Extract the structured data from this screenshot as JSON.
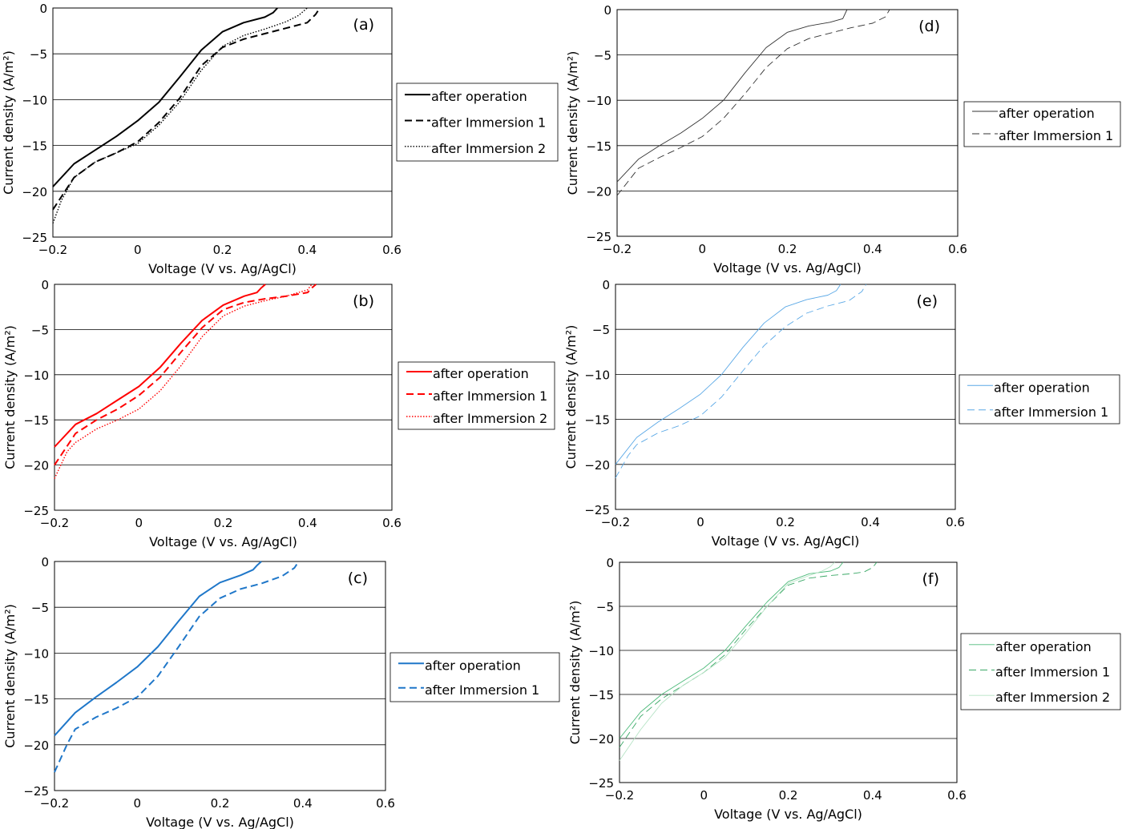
{
  "chart_data": [
    {
      "type": "line",
      "panel_label": "(a)",
      "xlabel": "Voltage (V vs. Ag/AgCl)",
      "ylabel": "Current density (A/m²)",
      "xlim": [
        -0.2,
        0.6
      ],
      "ylim": [
        -25,
        0
      ],
      "xticks": [
        "−0.2",
        "0",
        "0.2",
        "0.4",
        "0.6"
      ],
      "yticks": [
        "0",
        "−5",
        "−10",
        "−15",
        "−20",
        "−25"
      ],
      "grid": "horizontal",
      "legend_position": "right",
      "series": [
        {
          "name": "after operation",
          "color": "#000000",
          "style": "solid",
          "width": 2,
          "x": [
            -0.2,
            -0.15,
            -0.1,
            -0.05,
            0.0,
            0.05,
            0.1,
            0.15,
            0.2,
            0.25,
            0.3,
            0.32,
            0.33
          ],
          "y": [
            -19.5,
            -17.0,
            -15.5,
            -14.0,
            -12.3,
            -10.3,
            -7.5,
            -4.6,
            -2.6,
            -1.6,
            -1.0,
            -0.5,
            0
          ]
        },
        {
          "name": "after Immersion 1",
          "color": "#000000",
          "style": "dashed",
          "width": 2,
          "x": [
            -0.2,
            -0.15,
            -0.1,
            -0.05,
            0.0,
            0.05,
            0.1,
            0.15,
            0.2,
            0.25,
            0.3,
            0.35,
            0.4,
            0.42,
            0.43
          ],
          "y": [
            -22.0,
            -18.5,
            -16.8,
            -15.8,
            -14.6,
            -12.5,
            -9.8,
            -6.3,
            -4.3,
            -3.4,
            -2.8,
            -2.2,
            -1.6,
            -0.7,
            0
          ]
        },
        {
          "name": "after Immersion 2",
          "color": "#000000",
          "style": "dotted",
          "width": 1.4,
          "x": [
            -0.2,
            -0.18,
            -0.15,
            -0.1,
            -0.05,
            0.0,
            0.05,
            0.1,
            0.15,
            0.2,
            0.25,
            0.3,
            0.35,
            0.38,
            0.4
          ],
          "y": [
            -23.5,
            -21.0,
            -18.5,
            -16.8,
            -15.8,
            -14.8,
            -12.8,
            -10.2,
            -6.8,
            -4.2,
            -3.0,
            -2.3,
            -1.5,
            -0.8,
            0
          ]
        }
      ]
    },
    {
      "type": "line",
      "panel_label": "(b)",
      "xlabel": "Voltage (V vs. Ag/AgCl)",
      "ylabel": "Current density (A/m²)",
      "xlim": [
        -0.2,
        0.6
      ],
      "ylim": [
        -25,
        0
      ],
      "xticks": [
        "−0.2",
        "0",
        "0.2",
        "0.4",
        "0.6"
      ],
      "yticks": [
        "0",
        "−5",
        "−10",
        "−15",
        "−20",
        "−25"
      ],
      "grid": "horizontal",
      "legend_position": "right",
      "series": [
        {
          "name": "after operation",
          "color": "#ff0000",
          "style": "solid",
          "width": 2,
          "x": [
            -0.2,
            -0.15,
            -0.1,
            -0.05,
            0.0,
            0.05,
            0.1,
            0.15,
            0.2,
            0.25,
            0.28,
            0.29,
            0.3
          ],
          "y": [
            -18.0,
            -15.5,
            -14.3,
            -12.8,
            -11.3,
            -9.2,
            -6.5,
            -4.0,
            -2.3,
            -1.3,
            -0.9,
            -0.4,
            0
          ]
        },
        {
          "name": "after Immersion 1",
          "color": "#ff0000",
          "style": "dashed",
          "width": 2,
          "x": [
            -0.2,
            -0.15,
            -0.1,
            -0.05,
            0.0,
            0.05,
            0.1,
            0.15,
            0.2,
            0.25,
            0.3,
            0.35,
            0.4,
            0.41,
            0.42
          ],
          "y": [
            -20.0,
            -16.5,
            -15.0,
            -13.8,
            -12.3,
            -10.3,
            -7.5,
            -4.8,
            -2.8,
            -2.0,
            -1.6,
            -1.3,
            -0.9,
            -0.4,
            0
          ]
        },
        {
          "name": "after Immersion 2",
          "color": "#ff0000",
          "style": "dotted",
          "width": 1.4,
          "x": [
            -0.2,
            -0.17,
            -0.15,
            -0.1,
            -0.05,
            0.0,
            0.05,
            0.1,
            0.15,
            0.2,
            0.25,
            0.3,
            0.35,
            0.4,
            0.41
          ],
          "y": [
            -21.5,
            -18.5,
            -17.5,
            -16.0,
            -15.0,
            -13.8,
            -11.8,
            -9.0,
            -5.8,
            -3.5,
            -2.4,
            -1.8,
            -1.3,
            -0.6,
            0
          ]
        }
      ]
    },
    {
      "type": "line",
      "panel_label": "(c)",
      "xlabel": "Voltage (V vs. Ag/AgCl)",
      "ylabel": "Current density (A/m²)",
      "xlim": [
        -0.2,
        0.6
      ],
      "ylim": [
        -25,
        0
      ],
      "xticks": [
        "−0.2",
        "0",
        "0.2",
        "0.4",
        "0.6"
      ],
      "yticks": [
        "0",
        "−5",
        "−10",
        "−15",
        "−20",
        "−25"
      ],
      "grid": "horizontal",
      "legend_position": "right",
      "series": [
        {
          "name": "after operation",
          "color": "#1f77c9",
          "style": "solid",
          "width": 2,
          "x": [
            -0.2,
            -0.15,
            -0.1,
            -0.05,
            0.0,
            0.05,
            0.1,
            0.15,
            0.2,
            0.25,
            0.28,
            0.29,
            0.3
          ],
          "y": [
            -19.0,
            -16.5,
            -14.8,
            -13.2,
            -11.5,
            -9.3,
            -6.5,
            -3.8,
            -2.3,
            -1.5,
            -0.9,
            -0.4,
            0
          ]
        },
        {
          "name": "after Immersion 1",
          "color": "#1f77c9",
          "style": "dashed",
          "width": 2,
          "x": [
            -0.2,
            -0.17,
            -0.15,
            -0.1,
            -0.05,
            0.0,
            0.05,
            0.1,
            0.15,
            0.2,
            0.25,
            0.3,
            0.35,
            0.38,
            0.39
          ],
          "y": [
            -23.0,
            -20.0,
            -18.3,
            -17.0,
            -16.0,
            -14.8,
            -12.5,
            -9.3,
            -6.0,
            -4.0,
            -3.0,
            -2.4,
            -1.6,
            -0.7,
            0
          ]
        }
      ]
    },
    {
      "type": "line",
      "panel_label": "(d)",
      "xlabel": "Voltage (V vs. Ag/AgCl)",
      "ylabel": "Current density (A/m²)",
      "xlim": [
        -0.2,
        0.6
      ],
      "ylim": [
        -25,
        0
      ],
      "xticks": [
        "−0.2",
        "0",
        "0.2",
        "0.4",
        "0.6"
      ],
      "yticks": [
        "0",
        "−5",
        "−10",
        "−15",
        "−20",
        "−25"
      ],
      "grid": "horizontal",
      "legend_position": "right",
      "series": [
        {
          "name": "after operation",
          "color": "#333333",
          "style": "solid",
          "width": 0.9,
          "x": [
            -0.2,
            -0.15,
            -0.1,
            -0.05,
            0.0,
            0.05,
            0.1,
            0.15,
            0.2,
            0.25,
            0.3,
            0.33,
            0.34
          ],
          "y": [
            -19.0,
            -16.5,
            -15.0,
            -13.6,
            -12.0,
            -10.0,
            -7.0,
            -4.2,
            -2.5,
            -1.8,
            -1.4,
            -1.0,
            0
          ]
        },
        {
          "name": "after Immersion 1",
          "color": "#333333",
          "style": "dashed",
          "width": 0.9,
          "x": [
            -0.2,
            -0.15,
            -0.1,
            -0.05,
            0.0,
            0.05,
            0.1,
            0.15,
            0.2,
            0.25,
            0.3,
            0.35,
            0.4,
            0.43,
            0.44
          ],
          "y": [
            -20.5,
            -17.5,
            -16.3,
            -15.2,
            -14.0,
            -12.0,
            -9.3,
            -6.4,
            -4.3,
            -3.2,
            -2.6,
            -2.0,
            -1.5,
            -0.8,
            0
          ]
        }
      ]
    },
    {
      "type": "line",
      "panel_label": "(e)",
      "xlabel": "Voltage (V vs. Ag/AgCl)",
      "ylabel": "Current density (A/m²)",
      "xlim": [
        -0.2,
        0.6
      ],
      "ylim": [
        -25,
        0
      ],
      "xticks": [
        "−0.2",
        "0",
        "0.2",
        "0.4",
        "0.6"
      ],
      "yticks": [
        "0",
        "−5",
        "−10",
        "−15",
        "−20",
        "−25"
      ],
      "grid": "horizontal",
      "legend_position": "right",
      "series": [
        {
          "name": "after operation",
          "color": "#5aa8e6",
          "style": "solid",
          "width": 0.9,
          "x": [
            -0.2,
            -0.15,
            -0.1,
            -0.05,
            0.0,
            0.05,
            0.1,
            0.15,
            0.2,
            0.25,
            0.3,
            0.32,
            0.33
          ],
          "y": [
            -20.0,
            -17.0,
            -15.3,
            -13.8,
            -12.2,
            -10.0,
            -7.0,
            -4.3,
            -2.5,
            -1.7,
            -1.2,
            -0.7,
            0
          ]
        },
        {
          "name": "after Immersion 1",
          "color": "#5aa8e6",
          "style": "dashed",
          "width": 0.9,
          "x": [
            -0.2,
            -0.17,
            -0.15,
            -0.1,
            -0.05,
            0.0,
            0.05,
            0.1,
            0.15,
            0.2,
            0.25,
            0.3,
            0.35,
            0.38,
            0.39
          ],
          "y": [
            -21.5,
            -19.0,
            -17.8,
            -16.5,
            -15.7,
            -14.6,
            -12.5,
            -9.6,
            -6.8,
            -4.7,
            -3.2,
            -2.4,
            -1.8,
            -0.8,
            0
          ]
        }
      ]
    },
    {
      "type": "line",
      "panel_label": "(f)",
      "xlabel": "Voltage (V vs. Ag/AgCl)",
      "ylabel": "Current density (A/m²)",
      "xlim": [
        -0.2,
        0.6
      ],
      "ylim": [
        -25,
        0
      ],
      "xticks": [
        "−0.2",
        "0",
        "0.2",
        "0.4",
        "0.6"
      ],
      "yticks": [
        "0",
        "−5",
        "−10",
        "−15",
        "−20",
        "−25"
      ],
      "grid": "horizontal",
      "legend_position": "right",
      "series": [
        {
          "name": "after operation",
          "color": "#4dba7a",
          "style": "solid",
          "width": 0.9,
          "x": [
            -0.2,
            -0.15,
            -0.1,
            -0.05,
            0.0,
            0.05,
            0.1,
            0.15,
            0.2,
            0.25,
            0.3,
            0.32,
            0.33
          ],
          "y": [
            -20.0,
            -17.0,
            -15.0,
            -13.5,
            -12.0,
            -10.0,
            -7.2,
            -4.5,
            -2.2,
            -1.3,
            -1.0,
            -0.6,
            0
          ]
        },
        {
          "name": "after Immersion 1",
          "color": "#3aa866",
          "style": "dashed",
          "width": 0.9,
          "x": [
            -0.2,
            -0.15,
            -0.1,
            -0.05,
            0.0,
            0.05,
            0.1,
            0.15,
            0.2,
            0.25,
            0.3,
            0.35,
            0.38,
            0.4,
            0.41
          ],
          "y": [
            -21.0,
            -17.5,
            -15.5,
            -14.0,
            -12.5,
            -10.5,
            -7.6,
            -5.0,
            -2.6,
            -1.8,
            -1.5,
            -1.3,
            -1.1,
            -0.6,
            0
          ]
        },
        {
          "name": "after Immersion 2",
          "color": "#b6e3c5",
          "style": "solid",
          "width": 0.9,
          "x": [
            -0.2,
            -0.15,
            -0.1,
            -0.05,
            0.0,
            0.05,
            0.1,
            0.15,
            0.2,
            0.25,
            0.28,
            0.3,
            0.31
          ],
          "y": [
            -22.5,
            -19.0,
            -16.0,
            -14.0,
            -12.5,
            -10.8,
            -8.0,
            -5.0,
            -2.4,
            -1.5,
            -1.0,
            -0.5,
            0
          ]
        }
      ]
    }
  ]
}
